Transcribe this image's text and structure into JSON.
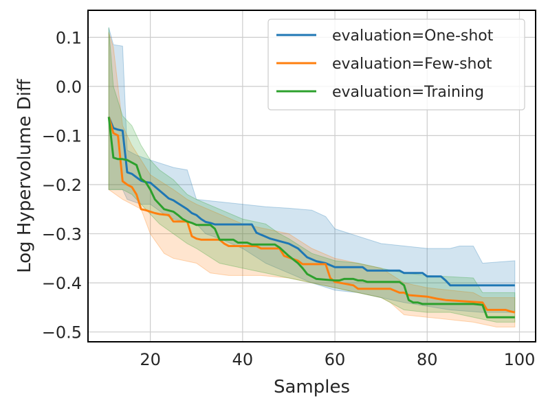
{
  "chart_data": {
    "type": "line",
    "xlabel": "Samples",
    "ylabel": "Log Hypervolume Diff",
    "xlim": [
      6.5,
      103.5
    ],
    "ylim": [
      -0.52,
      0.155
    ],
    "xticks": [
      20,
      40,
      60,
      80,
      100
    ],
    "xtick_labels": [
      "20",
      "40",
      "60",
      "80",
      "100"
    ],
    "yticks": [
      0.1,
      0.0,
      -0.1,
      -0.2,
      -0.3,
      -0.4,
      -0.5
    ],
    "ytick_labels": [
      "0.1",
      "0.0",
      "−0.1",
      "−0.2",
      "−0.3",
      "−0.4",
      "−0.5"
    ],
    "grid": true,
    "legend_position": "top-right",
    "series": [
      {
        "name": "evaluation=One-shot",
        "color": "#1f77b4",
        "values": [
          [
            11,
            -0.062
          ],
          [
            12,
            -0.085
          ],
          [
            13,
            -0.088
          ],
          [
            14,
            -0.09
          ],
          [
            15,
            -0.175
          ],
          [
            16,
            -0.178
          ],
          [
            17,
            -0.185
          ],
          [
            18,
            -0.192
          ],
          [
            19,
            -0.195
          ],
          [
            20,
            -0.196
          ],
          [
            21,
            -0.204
          ],
          [
            22,
            -0.212
          ],
          [
            23,
            -0.22
          ],
          [
            24,
            -0.228
          ],
          [
            25,
            -0.232
          ],
          [
            26,
            -0.238
          ],
          [
            27,
            -0.244
          ],
          [
            28,
            -0.25
          ],
          [
            29,
            -0.258
          ],
          [
            30,
            -0.262
          ],
          [
            31,
            -0.27
          ],
          [
            32,
            -0.276
          ],
          [
            33,
            -0.278
          ],
          [
            34,
            -0.281
          ],
          [
            42,
            -0.281
          ],
          [
            43,
            -0.298
          ],
          [
            44,
            -0.302
          ],
          [
            46,
            -0.31
          ],
          [
            48,
            -0.315
          ],
          [
            50,
            -0.32
          ],
          [
            52,
            -0.33
          ],
          [
            54,
            -0.348
          ],
          [
            56,
            -0.356
          ],
          [
            58,
            -0.36
          ],
          [
            60,
            -0.368
          ],
          [
            66,
            -0.368
          ],
          [
            67,
            -0.375
          ],
          [
            74,
            -0.375
          ],
          [
            75,
            -0.38
          ],
          [
            79,
            -0.38
          ],
          [
            80,
            -0.387
          ],
          [
            83,
            -0.387
          ],
          [
            84,
            -0.395
          ],
          [
            85,
            -0.405
          ],
          [
            99,
            -0.405
          ]
        ],
        "band_upper": [
          [
            11,
            0.12
          ],
          [
            12,
            0.085
          ],
          [
            14,
            0.082
          ],
          [
            15,
            -0.13
          ],
          [
            17,
            -0.14
          ],
          [
            20,
            -0.15
          ],
          [
            25,
            -0.165
          ],
          [
            28,
            -0.17
          ],
          [
            30,
            -0.23
          ],
          [
            40,
            -0.24
          ],
          [
            45,
            -0.245
          ],
          [
            50,
            -0.248
          ],
          [
            55,
            -0.252
          ],
          [
            58,
            -0.265
          ],
          [
            60,
            -0.29
          ],
          [
            70,
            -0.32
          ],
          [
            80,
            -0.33
          ],
          [
            85,
            -0.33
          ],
          [
            87,
            -0.325
          ],
          [
            90,
            -0.325
          ],
          [
            92,
            -0.36
          ],
          [
            99,
            -0.355
          ]
        ],
        "band_lower": [
          [
            11,
            -0.21
          ],
          [
            14,
            -0.21
          ],
          [
            15,
            -0.23
          ],
          [
            18,
            -0.24
          ],
          [
            20,
            -0.24
          ],
          [
            23,
            -0.26
          ],
          [
            25,
            -0.27
          ],
          [
            30,
            -0.28
          ],
          [
            32,
            -0.3
          ],
          [
            35,
            -0.31
          ],
          [
            40,
            -0.33
          ],
          [
            45,
            -0.36
          ],
          [
            50,
            -0.38
          ],
          [
            55,
            -0.4
          ],
          [
            60,
            -0.415
          ],
          [
            65,
            -0.42
          ],
          [
            70,
            -0.43
          ],
          [
            75,
            -0.44
          ],
          [
            85,
            -0.455
          ],
          [
            92,
            -0.46
          ],
          [
            99,
            -0.46
          ]
        ]
      },
      {
        "name": "evaluation=Few-shot",
        "color": "#ff7f0e",
        "values": [
          [
            11,
            -0.062
          ],
          [
            12,
            -0.095
          ],
          [
            13,
            -0.1
          ],
          [
            14,
            -0.193
          ],
          [
            15,
            -0.2
          ],
          [
            16,
            -0.205
          ],
          [
            17,
            -0.22
          ],
          [
            18,
            -0.25
          ],
          [
            19,
            -0.252
          ],
          [
            20,
            -0.255
          ],
          [
            21,
            -0.258
          ],
          [
            22,
            -0.26
          ],
          [
            24,
            -0.262
          ],
          [
            25,
            -0.275
          ],
          [
            28,
            -0.275
          ],
          [
            29,
            -0.305
          ],
          [
            30,
            -0.31
          ],
          [
            31,
            -0.312
          ],
          [
            35,
            -0.312
          ],
          [
            36,
            -0.32
          ],
          [
            37,
            -0.325
          ],
          [
            43,
            -0.325
          ],
          [
            44,
            -0.33
          ],
          [
            48,
            -0.33
          ],
          [
            49,
            -0.345
          ],
          [
            52,
            -0.355
          ],
          [
            53,
            -0.362
          ],
          [
            58,
            -0.362
          ],
          [
            59,
            -0.39
          ],
          [
            60,
            -0.398
          ],
          [
            64,
            -0.405
          ],
          [
            65,
            -0.412
          ],
          [
            72,
            -0.412
          ],
          [
            74,
            -0.42
          ],
          [
            75,
            -0.42
          ],
          [
            76,
            -0.425
          ],
          [
            80,
            -0.428
          ],
          [
            82,
            -0.432
          ],
          [
            84,
            -0.435
          ],
          [
            92,
            -0.44
          ],
          [
            93,
            -0.455
          ],
          [
            97,
            -0.455
          ],
          [
            98,
            -0.458
          ],
          [
            99,
            -0.46
          ]
        ],
        "band_upper": [
          [
            11,
            0.11
          ],
          [
            12,
            0.08
          ],
          [
            14,
            -0.08
          ],
          [
            16,
            -0.12
          ],
          [
            18,
            -0.15
          ],
          [
            20,
            -0.18
          ],
          [
            25,
            -0.21
          ],
          [
            28,
            -0.23
          ],
          [
            30,
            -0.24
          ],
          [
            35,
            -0.26
          ],
          [
            40,
            -0.28
          ],
          [
            45,
            -0.29
          ],
          [
            50,
            -0.3
          ],
          [
            55,
            -0.33
          ],
          [
            60,
            -0.35
          ],
          [
            65,
            -0.36
          ],
          [
            70,
            -0.37
          ],
          [
            75,
            -0.4
          ],
          [
            80,
            -0.41
          ],
          [
            85,
            -0.415
          ],
          [
            90,
            -0.42
          ],
          [
            92,
            -0.43
          ],
          [
            99,
            -0.43
          ]
        ],
        "band_lower": [
          [
            11,
            -0.21
          ],
          [
            14,
            -0.23
          ],
          [
            16,
            -0.24
          ],
          [
            18,
            -0.25
          ],
          [
            20,
            -0.3
          ],
          [
            23,
            -0.34
          ],
          [
            25,
            -0.35
          ],
          [
            30,
            -0.36
          ],
          [
            33,
            -0.38
          ],
          [
            37,
            -0.385
          ],
          [
            44,
            -0.385
          ],
          [
            50,
            -0.39
          ],
          [
            55,
            -0.4
          ],
          [
            60,
            -0.41
          ],
          [
            65,
            -0.42
          ],
          [
            70,
            -0.43
          ],
          [
            72,
            -0.44
          ],
          [
            75,
            -0.465
          ],
          [
            80,
            -0.47
          ],
          [
            90,
            -0.48
          ],
          [
            95,
            -0.49
          ],
          [
            99,
            -0.49
          ]
        ]
      },
      {
        "name": "evaluation=Training",
        "color": "#2ca02c",
        "values": [
          [
            11,
            -0.062
          ],
          [
            12,
            -0.145
          ],
          [
            13,
            -0.148
          ],
          [
            14,
            -0.148
          ],
          [
            15,
            -0.15
          ],
          [
            16,
            -0.155
          ],
          [
            17,
            -0.16
          ],
          [
            18,
            -0.188
          ],
          [
            19,
            -0.195
          ],
          [
            20,
            -0.21
          ],
          [
            21,
            -0.23
          ],
          [
            22,
            -0.24
          ],
          [
            23,
            -0.25
          ],
          [
            25,
            -0.255
          ],
          [
            26,
            -0.262
          ],
          [
            27,
            -0.27
          ],
          [
            28,
            -0.275
          ],
          [
            29,
            -0.278
          ],
          [
            30,
            -0.282
          ],
          [
            33,
            -0.282
          ],
          [
            34,
            -0.29
          ],
          [
            35,
            -0.312
          ],
          [
            38,
            -0.312
          ],
          [
            39,
            -0.318
          ],
          [
            41,
            -0.318
          ],
          [
            42,
            -0.322
          ],
          [
            47,
            -0.322
          ],
          [
            48,
            -0.328
          ],
          [
            50,
            -0.345
          ],
          [
            52,
            -0.36
          ],
          [
            53,
            -0.37
          ],
          [
            54,
            -0.382
          ],
          [
            56,
            -0.392
          ],
          [
            60,
            -0.395
          ],
          [
            61,
            -0.395
          ],
          [
            62,
            -0.392
          ],
          [
            64,
            -0.392
          ],
          [
            65,
            -0.395
          ],
          [
            66,
            -0.395
          ],
          [
            67,
            -0.398
          ],
          [
            74,
            -0.398
          ],
          [
            75,
            -0.405
          ],
          [
            76,
            -0.435
          ],
          [
            77,
            -0.44
          ],
          [
            78,
            -0.44
          ],
          [
            79,
            -0.443
          ],
          [
            90,
            -0.443
          ],
          [
            92,
            -0.445
          ],
          [
            93,
            -0.47
          ],
          [
            99,
            -0.47
          ]
        ],
        "band_upper": [
          [
            11,
            0.12
          ],
          [
            12,
            0.0
          ],
          [
            14,
            -0.06
          ],
          [
            16,
            -0.08
          ],
          [
            18,
            -0.12
          ],
          [
            20,
            -0.15
          ],
          [
            22,
            -0.17
          ],
          [
            25,
            -0.19
          ],
          [
            28,
            -0.22
          ],
          [
            30,
            -0.23
          ],
          [
            35,
            -0.25
          ],
          [
            40,
            -0.27
          ],
          [
            45,
            -0.28
          ],
          [
            48,
            -0.3
          ],
          [
            50,
            -0.31
          ],
          [
            55,
            -0.34
          ],
          [
            60,
            -0.355
          ],
          [
            65,
            -0.36
          ],
          [
            70,
            -0.37
          ],
          [
            75,
            -0.38
          ],
          [
            80,
            -0.385
          ],
          [
            90,
            -0.39
          ],
          [
            92,
            -0.42
          ],
          [
            99,
            -0.42
          ]
        ],
        "band_lower": [
          [
            11,
            -0.21
          ],
          [
            14,
            -0.21
          ],
          [
            16,
            -0.22
          ],
          [
            18,
            -0.24
          ],
          [
            20,
            -0.26
          ],
          [
            22,
            -0.28
          ],
          [
            25,
            -0.3
          ],
          [
            28,
            -0.32
          ],
          [
            30,
            -0.33
          ],
          [
            35,
            -0.36
          ],
          [
            40,
            -0.37
          ],
          [
            45,
            -0.38
          ],
          [
            50,
            -0.39
          ],
          [
            55,
            -0.4
          ],
          [
            60,
            -0.41
          ],
          [
            65,
            -0.42
          ],
          [
            70,
            -0.43
          ],
          [
            75,
            -0.455
          ],
          [
            80,
            -0.46
          ],
          [
            85,
            -0.46
          ],
          [
            90,
            -0.47
          ],
          [
            95,
            -0.48
          ],
          [
            99,
            -0.48
          ]
        ]
      }
    ]
  }
}
